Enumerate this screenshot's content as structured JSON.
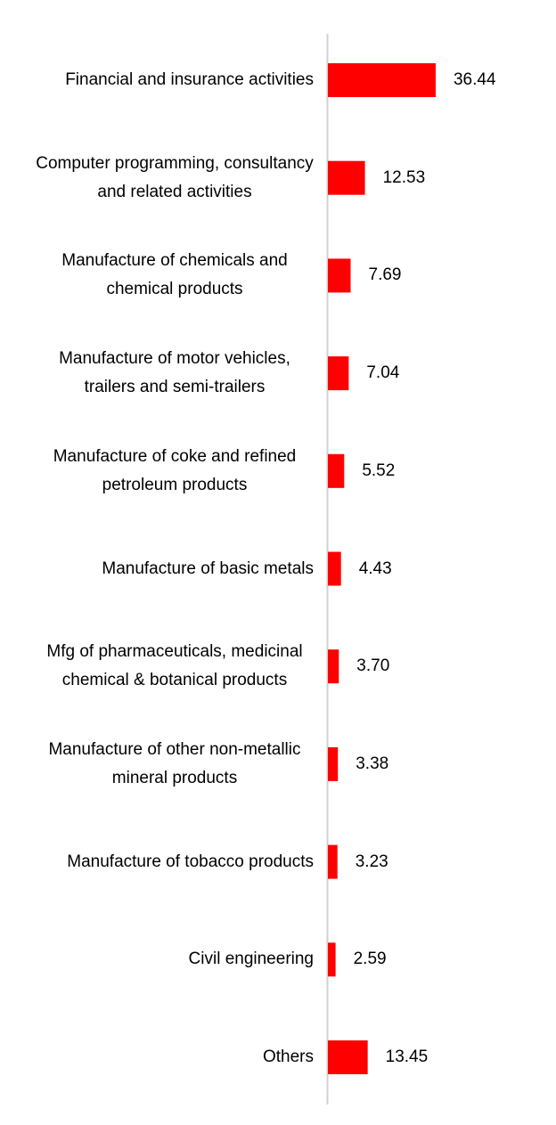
{
  "chart_data": {
    "type": "bar",
    "orientation": "horizontal",
    "color": "#ff0000",
    "categories": [
      "Financial and insurance activities",
      "Computer programming, consultancy and related activities",
      "Manufacture of chemicals and chemical products",
      "Manufacture of motor vehicles, trailers and semi-trailers",
      "Manufacture of coke and refined petroleum products",
      "Manufacture of basic metals",
      "Mfg of pharmaceuticals, medicinal chemical & botanical products",
      "Manufacture of other non-metallic mineral products",
      "Manufacture of tobacco products",
      "Civil engineering",
      "Others"
    ],
    "values": [
      36.44,
      12.53,
      7.69,
      7.04,
      5.52,
      4.43,
      3.7,
      3.38,
      3.23,
      2.59,
      13.45
    ],
    "value_labels": [
      "36.44",
      "12.53",
      "7.69",
      "7.04",
      "5.52",
      "4.43",
      "3.70",
      "3.38",
      "3.23",
      "2.59",
      "13.45"
    ]
  }
}
